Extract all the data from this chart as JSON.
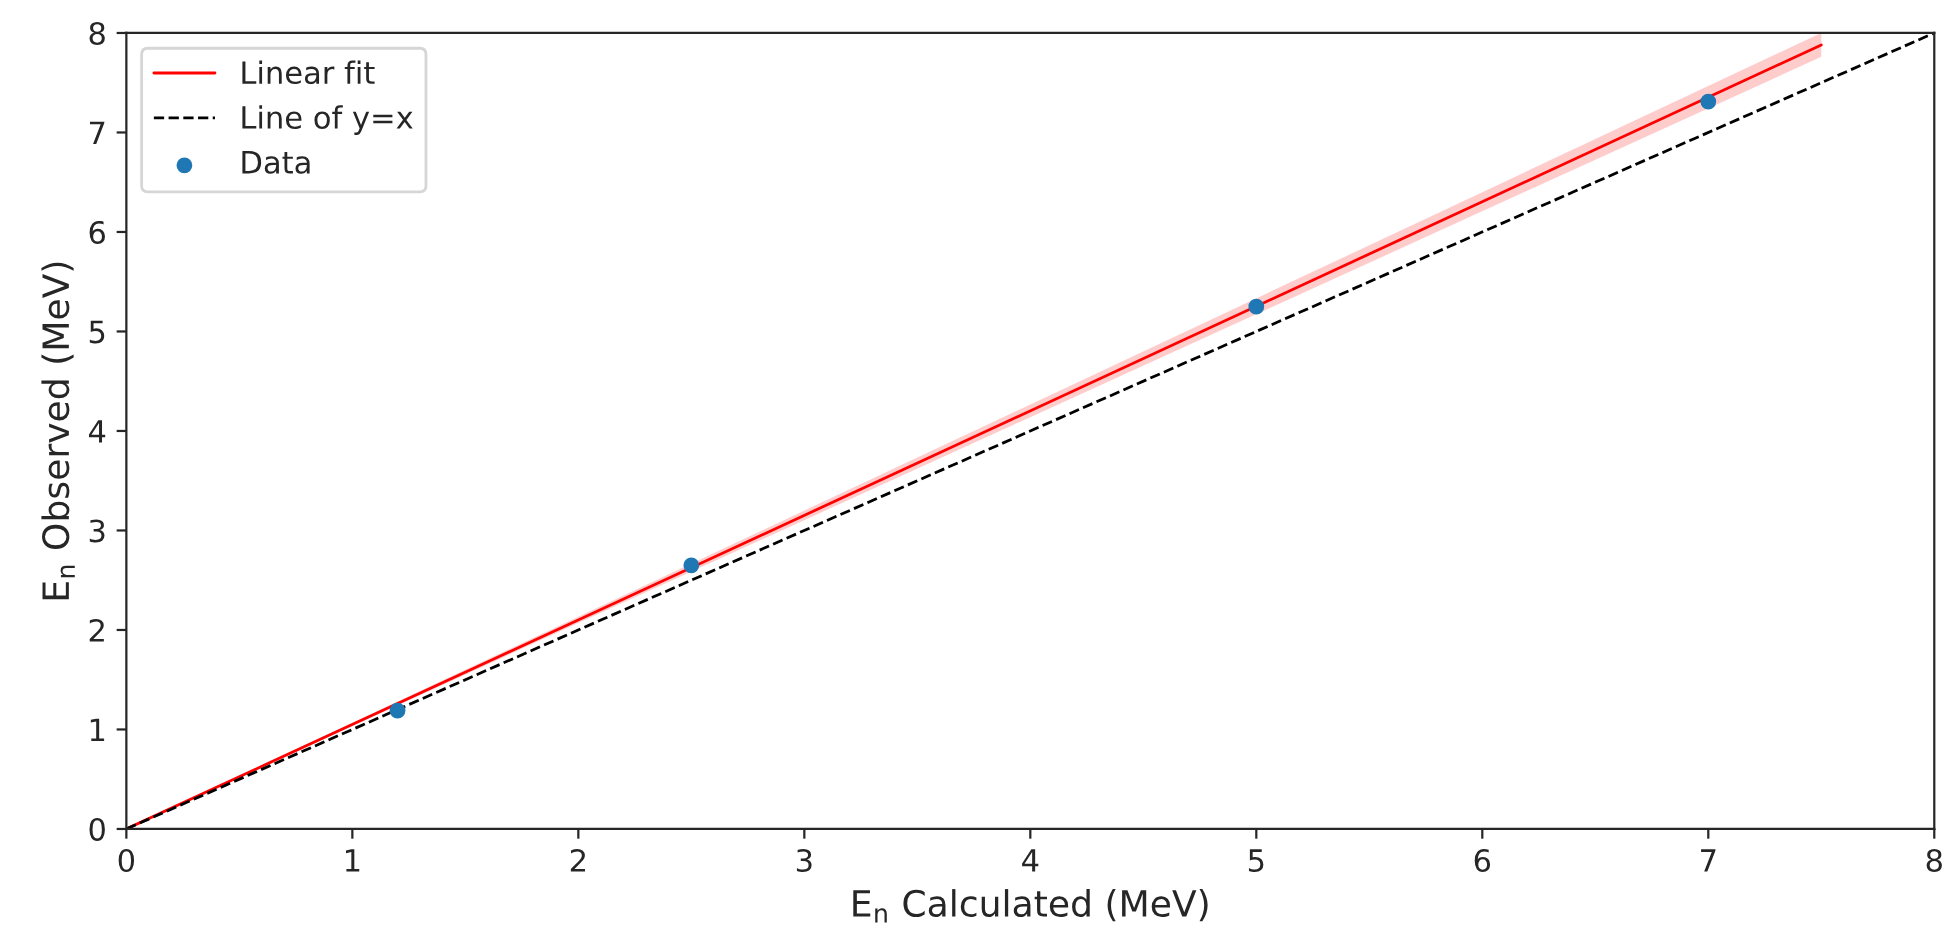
{
  "chart_data": {
    "type": "scatter",
    "xlabel": "E$_{n}$ Calculated (MeV)",
    "ylabel": "E$_{n}$ Observed (MeV)",
    "xlim": [
      0,
      8
    ],
    "ylim": [
      0,
      8
    ],
    "xticks": [
      0,
      1,
      2,
      3,
      4,
      5,
      6,
      7,
      8
    ],
    "yticks": [
      0,
      1,
      2,
      3,
      4,
      5,
      6,
      7,
      8
    ],
    "grid": false,
    "legend": "top left",
    "series": [
      {
        "name": "Linear fit",
        "type": "line",
        "color": "#ff0000",
        "line_style": "solid",
        "x": [
          0,
          7.5
        ],
        "values": [
          0,
          7.88
        ],
        "lower": [
          0,
          7.76
        ],
        "upper": [
          0,
          8.0
        ]
      },
      {
        "name": "Line of y=x",
        "type": "line",
        "color": "#000000",
        "line_style": "dashed",
        "x": [
          0,
          8
        ],
        "values": [
          0,
          8
        ]
      },
      {
        "name": "Data",
        "color": "#1f77b4",
        "marker": "circle",
        "x": [
          1.2,
          2.5,
          5.0,
          7.0
        ],
        "values": [
          1.19,
          2.65,
          5.25,
          7.31
        ]
      }
    ]
  }
}
